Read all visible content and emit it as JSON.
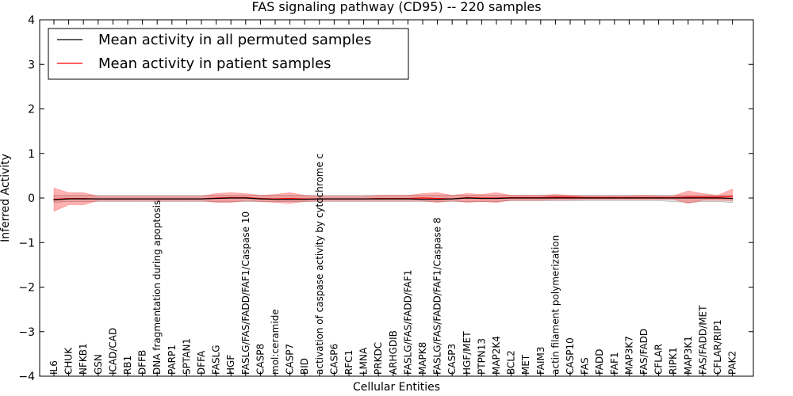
{
  "chart_data": {
    "type": "line",
    "title": "FAS signaling pathway (CD95) -- 220 samples",
    "xlabel": "Cellular Entities",
    "ylabel": "Inferred Activity",
    "ylim": [
      -4,
      4
    ],
    "yticks": [
      -4,
      -3,
      -2,
      -1,
      0,
      1,
      2,
      3,
      4
    ],
    "ytick_labels": [
      "−4",
      "−3",
      "−2",
      "−1",
      "0",
      "1",
      "2",
      "3",
      "4"
    ],
    "grid": false,
    "legend_position": "top-left",
    "categories": [
      "IL6",
      "CHUK",
      "NFKB1",
      "GSN",
      "ICAD/CAD",
      "RB1",
      "DFFB",
      "DNA fragmentation during apoptosis",
      "PARP1",
      "SPTAN1",
      "DFFA",
      "FASLG",
      "HGF",
      "FASLG/FAS/FADD/FAF1/Caspase 10",
      "CASP8",
      "mol:ceramide",
      "CASP7",
      "BID",
      "activation of caspase activity by cytochrome c",
      "CASP6",
      "RFC1",
      "LMNA",
      "PRKDC",
      "ARHGDIB",
      "FASLG/FAS/FADD/FAF1",
      "MAPK8",
      "FASLG/FAS/FADD/FAF1/Caspase 8",
      "CASP3",
      "HGF/MET",
      "PTPN13",
      "MAP2K4",
      "BCL2",
      "MET",
      "FAIM3",
      "actin filament polymerization",
      "CASP10",
      "FAS",
      "FADD",
      "FAF1",
      "MAP3K7",
      "FAS/FADD",
      "CFLAR",
      "RIPK1",
      "MAP3K1",
      "FAS/FADD/MET",
      "CFLAR/RIP1",
      "PAK2"
    ],
    "series": [
      {
        "name": "Mean activity in all permuted samples",
        "color": "#000000",
        "values": [
          -0.04,
          -0.02,
          -0.02,
          -0.02,
          -0.02,
          -0.02,
          -0.02,
          -0.02,
          -0.02,
          -0.02,
          -0.02,
          -0.01,
          0.0,
          0.0,
          -0.02,
          -0.03,
          -0.03,
          -0.03,
          -0.02,
          -0.02,
          -0.02,
          -0.02,
          -0.02,
          -0.02,
          -0.02,
          -0.03,
          -0.03,
          -0.02,
          0.0,
          -0.01,
          -0.01,
          0.0,
          0.0,
          0.0,
          0.0,
          0.0,
          0.0,
          0.0,
          0.0,
          0.0,
          0.0,
          0.0,
          0.0,
          0.0,
          0.0,
          0.0,
          -0.01
        ],
        "band_low": [
          -0.1,
          -0.08,
          -0.08,
          -0.08,
          -0.08,
          -0.08,
          -0.08,
          -0.08,
          -0.08,
          -0.08,
          -0.08,
          -0.08,
          -0.08,
          -0.08,
          -0.08,
          -0.08,
          -0.08,
          -0.08,
          -0.08,
          -0.08,
          -0.08,
          -0.08,
          -0.08,
          -0.08,
          -0.08,
          -0.08,
          -0.08,
          -0.08,
          -0.08,
          -0.08,
          -0.08,
          -0.06,
          -0.06,
          -0.06,
          -0.06,
          -0.06,
          -0.06,
          -0.06,
          -0.06,
          -0.06,
          -0.06,
          -0.06,
          -0.08,
          -0.1,
          -0.08,
          -0.08,
          -0.1
        ],
        "band_high": [
          0.06,
          0.06,
          0.06,
          0.06,
          0.06,
          0.06,
          0.06,
          0.06,
          0.06,
          0.06,
          0.06,
          0.06,
          0.06,
          0.06,
          0.06,
          0.06,
          0.06,
          0.06,
          0.06,
          0.06,
          0.06,
          0.06,
          0.06,
          0.06,
          0.06,
          0.06,
          0.06,
          0.06,
          0.06,
          0.06,
          0.06,
          0.06,
          0.06,
          0.06,
          0.06,
          0.06,
          0.06,
          0.06,
          0.06,
          0.06,
          0.06,
          0.06,
          0.06,
          0.06,
          0.06,
          0.06,
          0.06
        ]
      },
      {
        "name": "Mean activity in patient samples",
        "color": "#ff0000",
        "values": [
          -0.03,
          -0.01,
          -0.01,
          -0.02,
          -0.02,
          -0.02,
          -0.02,
          -0.02,
          -0.02,
          -0.02,
          -0.02,
          0.0,
          0.01,
          0.01,
          -0.01,
          -0.02,
          -0.01,
          -0.02,
          -0.02,
          -0.02,
          -0.02,
          -0.02,
          -0.01,
          -0.01,
          -0.01,
          0.0,
          -0.01,
          -0.02,
          0.01,
          0.0,
          0.0,
          0.01,
          0.01,
          0.01,
          0.02,
          0.02,
          0.01,
          0.01,
          0.01,
          0.01,
          0.01,
          0.01,
          0.01,
          0.02,
          0.02,
          0.02,
          0.03
        ],
        "band_low": [
          -0.3,
          -0.15,
          -0.15,
          -0.06,
          -0.06,
          -0.06,
          -0.06,
          -0.06,
          -0.06,
          -0.06,
          -0.06,
          -0.1,
          -0.1,
          -0.06,
          -0.08,
          -0.1,
          -0.12,
          -0.08,
          -0.06,
          -0.06,
          -0.06,
          -0.06,
          -0.06,
          -0.06,
          -0.06,
          -0.06,
          -0.1,
          -0.06,
          -0.1,
          -0.08,
          -0.1,
          -0.05,
          -0.05,
          -0.05,
          -0.04,
          -0.04,
          -0.03,
          -0.03,
          -0.03,
          -0.03,
          -0.03,
          -0.03,
          -0.03,
          -0.12,
          -0.05,
          -0.05,
          -0.06
        ],
        "band_high": [
          0.22,
          0.12,
          0.12,
          0.04,
          0.04,
          0.04,
          0.04,
          0.04,
          0.04,
          0.04,
          0.04,
          0.1,
          0.12,
          0.1,
          0.06,
          0.08,
          0.12,
          0.06,
          0.04,
          0.04,
          0.04,
          0.04,
          0.06,
          0.06,
          0.06,
          0.1,
          0.12,
          0.06,
          0.1,
          0.08,
          0.12,
          0.06,
          0.06,
          0.06,
          0.08,
          0.06,
          0.05,
          0.05,
          0.05,
          0.05,
          0.06,
          0.05,
          0.05,
          0.16,
          0.1,
          0.06,
          0.2
        ]
      }
    ]
  }
}
